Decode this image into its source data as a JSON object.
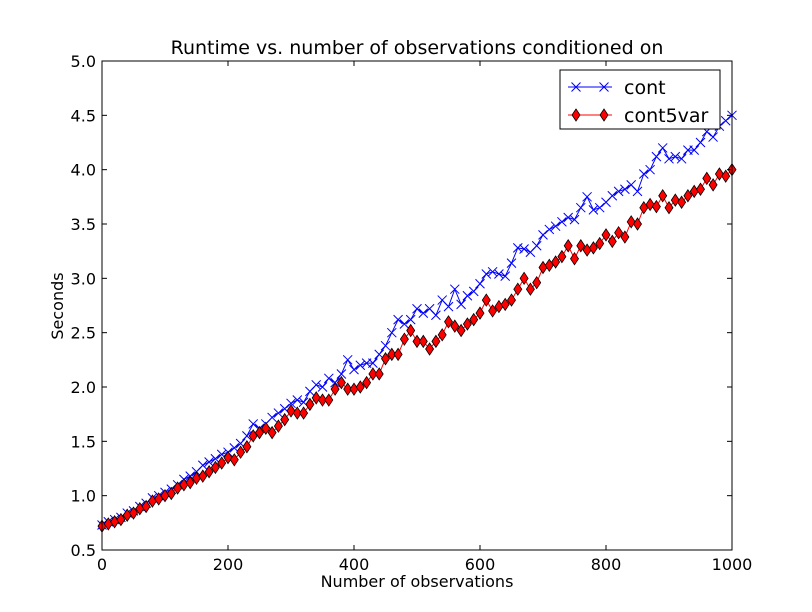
{
  "chart_data": {
    "type": "line",
    "title": "Runtime vs. number of observations conditioned on",
    "xlabel": "Number of observations",
    "ylabel": "Seconds",
    "xlim": [
      0,
      1000
    ],
    "ylim": [
      0.5,
      5.0
    ],
    "xticks": [
      0,
      200,
      400,
      600,
      800,
      1000
    ],
    "xtick_labels": [
      "0",
      "200",
      "400",
      "600",
      "800",
      "1000"
    ],
    "yticks": [
      0.5,
      1.0,
      1.5,
      2.0,
      2.5,
      3.0,
      3.5,
      4.0,
      4.5,
      5.0
    ],
    "ytick_labels": [
      "0.5",
      "1.0",
      "1.5",
      "2.0",
      "2.5",
      "3.0",
      "3.5",
      "4.0",
      "4.5",
      "5.0"
    ],
    "grid": false,
    "legend_position": "top-right",
    "x": [
      0,
      10,
      20,
      30,
      40,
      50,
      60,
      70,
      80,
      90,
      100,
      110,
      120,
      130,
      140,
      150,
      160,
      170,
      180,
      190,
      200,
      210,
      220,
      230,
      240,
      250,
      260,
      270,
      280,
      290,
      300,
      310,
      320,
      330,
      340,
      350,
      360,
      370,
      380,
      390,
      400,
      410,
      420,
      430,
      440,
      450,
      460,
      470,
      480,
      490,
      500,
      510,
      520,
      530,
      540,
      550,
      560,
      570,
      580,
      590,
      600,
      610,
      620,
      630,
      640,
      650,
      660,
      670,
      680,
      690,
      700,
      710,
      720,
      730,
      740,
      750,
      760,
      770,
      780,
      790,
      800,
      810,
      820,
      830,
      840,
      850,
      860,
      870,
      880,
      890,
      900,
      910,
      920,
      930,
      940,
      950,
      960,
      970,
      980,
      990,
      1000
    ],
    "series": [
      {
        "name": "cont",
        "color": "#0000ff",
        "marker": "x",
        "values": [
          0.73,
          0.76,
          0.78,
          0.8,
          0.84,
          0.86,
          0.9,
          0.93,
          0.98,
          1.0,
          1.03,
          1.06,
          1.1,
          1.15,
          1.18,
          1.22,
          1.28,
          1.31,
          1.34,
          1.38,
          1.4,
          1.44,
          1.48,
          1.55,
          1.66,
          1.62,
          1.66,
          1.72,
          1.76,
          1.8,
          1.85,
          1.88,
          1.86,
          1.96,
          2.02,
          2.0,
          2.08,
          2.04,
          2.12,
          2.25,
          2.16,
          2.2,
          2.22,
          2.22,
          2.3,
          2.38,
          2.5,
          2.62,
          2.58,
          2.62,
          2.72,
          2.68,
          2.72,
          2.66,
          2.8,
          2.74,
          2.9,
          2.76,
          2.84,
          2.88,
          2.95,
          3.04,
          3.06,
          3.04,
          3.02,
          3.14,
          3.28,
          3.27,
          3.24,
          3.3,
          3.4,
          3.45,
          3.48,
          3.52,
          3.56,
          3.54,
          3.65,
          3.75,
          3.63,
          3.65,
          3.7,
          3.76,
          3.8,
          3.82,
          3.86,
          3.8,
          3.96,
          4.0,
          4.12,
          4.2,
          4.1,
          4.12,
          4.1,
          4.18,
          4.18,
          4.25,
          4.35,
          4.3,
          4.4,
          4.45,
          4.5
        ]
      },
      {
        "name": "cont5var",
        "color": "#ff0000",
        "marker": "diamond",
        "values": [
          0.72,
          0.74,
          0.76,
          0.78,
          0.82,
          0.84,
          0.88,
          0.9,
          0.95,
          0.97,
          1.0,
          1.02,
          1.07,
          1.1,
          1.12,
          1.16,
          1.18,
          1.22,
          1.26,
          1.3,
          1.35,
          1.33,
          1.4,
          1.45,
          1.55,
          1.58,
          1.62,
          1.58,
          1.64,
          1.7,
          1.78,
          1.76,
          1.76,
          1.84,
          1.9,
          1.88,
          1.88,
          1.98,
          2.04,
          1.98,
          1.98,
          2.0,
          2.04,
          2.12,
          2.12,
          2.26,
          2.3,
          2.3,
          2.44,
          2.52,
          2.42,
          2.42,
          2.35,
          2.42,
          2.48,
          2.6,
          2.56,
          2.52,
          2.58,
          2.62,
          2.68,
          2.8,
          2.7,
          2.74,
          2.76,
          2.8,
          2.9,
          3.0,
          2.9,
          2.96,
          3.1,
          3.12,
          3.15,
          3.2,
          3.3,
          3.18,
          3.3,
          3.26,
          3.28,
          3.32,
          3.4,
          3.34,
          3.42,
          3.38,
          3.52,
          3.5,
          3.65,
          3.68,
          3.66,
          3.76,
          3.65,
          3.72,
          3.7,
          3.76,
          3.8,
          3.82,
          3.92,
          3.86,
          3.96,
          3.94,
          4.0
        ]
      }
    ]
  }
}
